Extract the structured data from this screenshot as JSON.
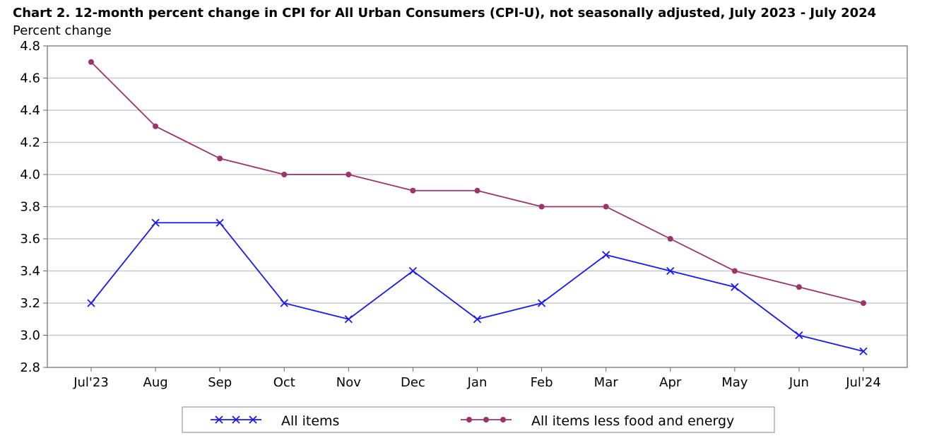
{
  "chart_data": {
    "type": "line",
    "title": "Chart 2. 12-month percent change in CPI for All Urban Consumers (CPI-U), not seasonally adjusted, July 2023 - July 2024",
    "ylabel": "Percent change",
    "xlabel": "",
    "categories": [
      "Jul'23",
      "Aug",
      "Sep",
      "Oct",
      "Nov",
      "Dec",
      "Jan",
      "Feb",
      "Mar",
      "Apr",
      "May",
      "Jun",
      "Jul'24"
    ],
    "ylim": [
      2.8,
      4.8
    ],
    "yticks": [
      "2.8",
      "3.0",
      "3.2",
      "3.4",
      "3.6",
      "3.8",
      "4.0",
      "4.2",
      "4.4",
      "4.6",
      "4.8"
    ],
    "grid": true,
    "legend_position": "bottom",
    "series": [
      {
        "name": "All items",
        "color": "#1a1aee",
        "marker": "x",
        "values": [
          3.2,
          3.7,
          3.7,
          3.2,
          3.1,
          3.4,
          3.1,
          3.2,
          3.5,
          3.4,
          3.3,
          3.0,
          2.9
        ]
      },
      {
        "name": "All items less food and energy",
        "color": "#9b3468",
        "marker": "circle",
        "values": [
          4.7,
          4.3,
          4.1,
          4.0,
          4.0,
          3.9,
          3.9,
          3.8,
          3.8,
          3.6,
          3.4,
          3.3,
          3.2
        ]
      }
    ]
  }
}
